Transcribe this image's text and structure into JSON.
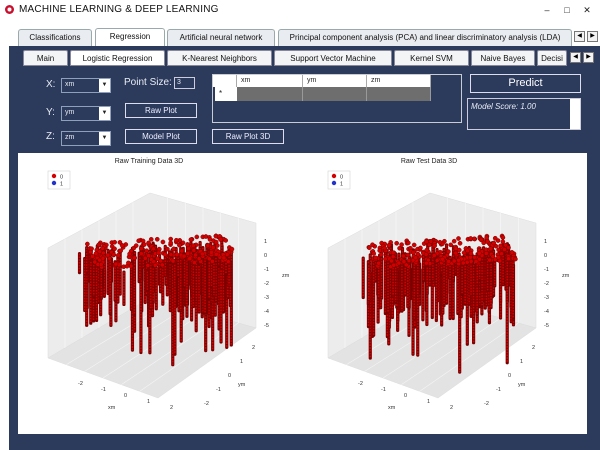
{
  "window": {
    "title": "MACHINE LEARNING & DEEP LEARNING",
    "minimize": "–",
    "maximize": "□",
    "close": "✕"
  },
  "top_tabs": [
    "Classifications",
    "Regression",
    "Artificial neural network",
    "Principal component analysis (PCA) and linear discriminatory analysis (LDA)"
  ],
  "active_top_tab": "Regression",
  "sub_tabs": [
    "Main",
    "Logistic Regression",
    "K-Nearest Neighbors",
    "Support Vector Machine",
    "Kernel SVM",
    "Naive Bayes",
    "Decisi"
  ],
  "active_sub_tab": "Logistic Regression",
  "controls": {
    "x_label": "X:",
    "x_value": "xm",
    "y_label": "Y:",
    "y_value": "ym",
    "z_label": "Z:",
    "z_value": "zm",
    "point_size_label": "Point Size:",
    "point_size_value": "3",
    "raw_plot": "Raw Plot",
    "model_plot": "Model Plot",
    "raw_plot_3d": "Raw Plot 3D",
    "predict": "Predict",
    "model_score": "Model Score: 1.00"
  },
  "grid": {
    "columns": [
      "xm",
      "ym",
      "zm"
    ],
    "new_row_marker": "*"
  },
  "plots": [
    {
      "title": "Raw Training Data 3D",
      "legend": [
        "0",
        "1"
      ],
      "xlabel": "xm",
      "ylabel": "ym",
      "zlabel": "zm"
    },
    {
      "title": "Raw Test Data 3D",
      "legend": [
        "0",
        "1"
      ],
      "xlabel": "xm",
      "ylabel": "ym",
      "zlabel": "zm"
    }
  ],
  "axis_ticks": {
    "x": [
      "-2",
      "-1",
      "0",
      "1",
      "2"
    ],
    "y": [
      "-2",
      "-1",
      "0",
      "1",
      "2"
    ],
    "z": [
      "1",
      "0",
      "-1",
      "-2",
      "-3",
      "-4",
      "-5"
    ]
  },
  "colors": {
    "frame": "#2c3a5c",
    "class0": "#d40000",
    "class1": "#2233cc"
  }
}
